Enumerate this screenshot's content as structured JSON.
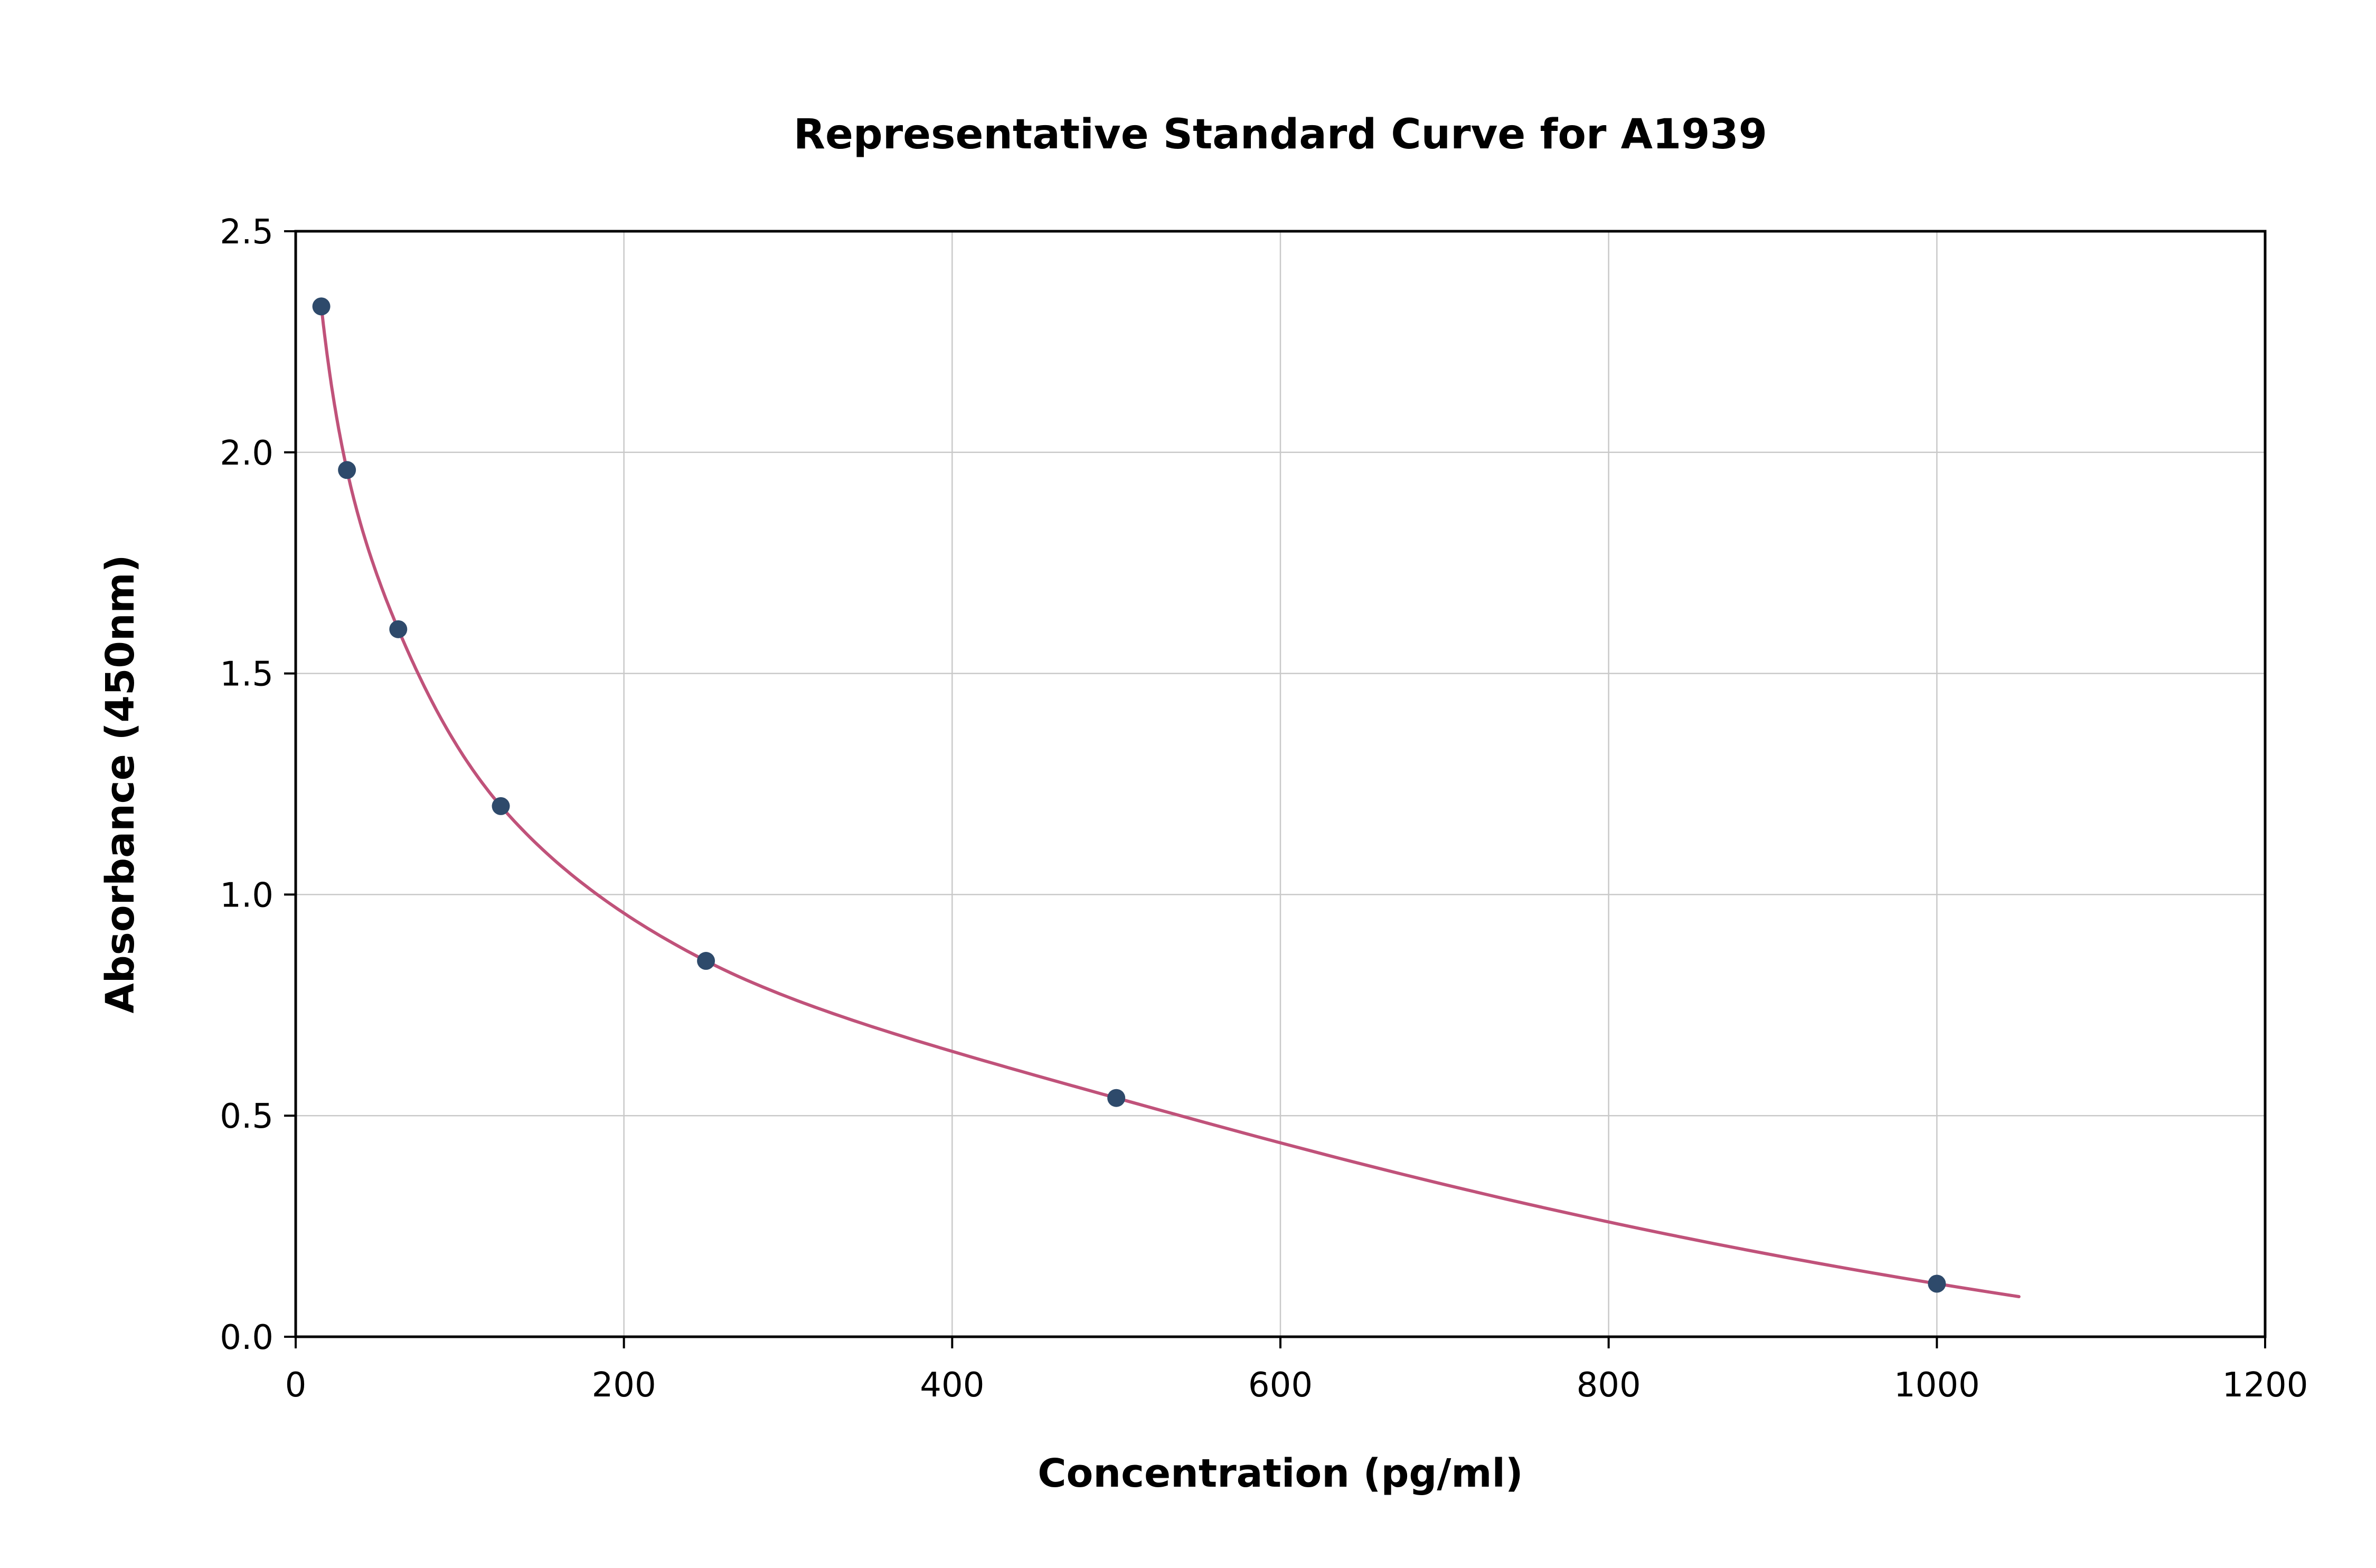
{
  "chart_data": {
    "type": "scatter",
    "title": "Representative Standard Curve for A1939",
    "xlabel": "Concentration (pg/ml)",
    "ylabel": "Absorbance (450nm)",
    "xlim": [
      0,
      1200
    ],
    "ylim": [
      0,
      2.5
    ],
    "x_ticks": [
      0,
      200,
      400,
      600,
      800,
      1000,
      1200
    ],
    "x_tick_labels": [
      "0",
      "200",
      "400",
      "600",
      "800",
      "1000",
      "1200"
    ],
    "y_ticks": [
      0,
      0.5,
      1,
      1.5,
      2,
      2.5
    ],
    "y_tick_labels": [
      "0.0",
      "0.5",
      "1.0",
      "1.5",
      "2.0",
      "2.5"
    ],
    "grid": true,
    "legend_position": "none",
    "colors": {
      "background": "#ffffff",
      "grid": "#c9c9c9",
      "axis": "#000000",
      "points": "#2e4a6b",
      "curve": "#c0527a"
    },
    "series": [
      {
        "name": "standard-points",
        "type": "scatter",
        "points": [
          [
            15.625,
            2.33
          ],
          [
            31.25,
            1.96
          ],
          [
            62.5,
            1.6
          ],
          [
            125,
            1.2
          ],
          [
            250,
            0.85
          ],
          [
            500,
            0.54
          ],
          [
            1000,
            0.12
          ]
        ]
      },
      {
        "name": "fitted-curve",
        "type": "line",
        "description": "smooth standard-curve fit through the points",
        "x_start": 15.2,
        "x_end": 1050
      }
    ]
  }
}
